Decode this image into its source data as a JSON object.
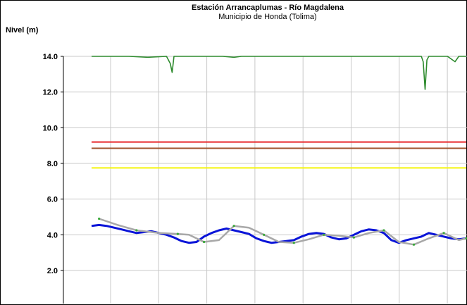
{
  "chart_data": {
    "type": "line",
    "title": "Estación Arrancaplumas - Río Magdalena",
    "subtitle": "Municipio de Honda (Tolima)",
    "ylabel": "Nivel (m)",
    "xlabel": "",
    "ylim": [
      0,
      14.0
    ],
    "yticks": [
      "14.0",
      "12.0",
      "10.0",
      "8.0",
      "6.0",
      "4.0",
      "2.0"
    ],
    "yticks_values": [
      14,
      12,
      10,
      8,
      6,
      4,
      2
    ],
    "grid": true,
    "x_gridlines": 8,
    "x_range": [
      0,
      100
    ],
    "thresholds": [
      {
        "value": 9.2,
        "color": "#e8272a"
      },
      {
        "value": 8.85,
        "color": "#a0522d"
      },
      {
        "value": 7.75,
        "color": "#f5f50a"
      }
    ],
    "series": [
      {
        "color": "#0a14d8",
        "x": [
          0,
          2,
          4,
          6,
          8,
          10,
          12,
          14,
          16,
          18,
          20,
          22,
          24,
          26,
          28,
          30,
          32,
          34,
          36,
          38,
          40,
          42,
          44,
          46,
          48,
          50,
          52,
          54,
          56,
          58,
          60,
          62,
          64,
          66,
          68,
          70,
          72,
          74,
          76,
          78,
          80,
          82,
          84,
          86,
          88,
          90,
          92,
          94,
          96,
          98,
          100
        ],
        "values": [
          4.5,
          4.55,
          4.5,
          4.4,
          4.3,
          4.2,
          4.1,
          4.15,
          4.2,
          4.1,
          4.0,
          3.85,
          3.65,
          3.55,
          3.6,
          3.9,
          4.1,
          4.25,
          4.35,
          4.25,
          4.15,
          4.05,
          3.8,
          3.65,
          3.55,
          3.6,
          3.65,
          3.7,
          3.9,
          4.05,
          4.1,
          4.05,
          3.85,
          3.75,
          3.8,
          4.0,
          4.2,
          4.3,
          4.25,
          4.1,
          3.7,
          3.55,
          3.7,
          3.8,
          3.9,
          4.1,
          4.0,
          3.9,
          3.8,
          3.75,
          3.8
        ]
      },
      {
        "color": "#a8a8a8",
        "x": [
          2,
          7,
          12,
          18,
          23,
          26,
          30,
          34,
          38,
          42,
          46,
          50,
          54,
          58,
          62,
          66,
          70,
          74,
          78,
          82,
          86,
          90,
          94,
          98,
          100
        ],
        "values": [
          4.9,
          4.55,
          4.25,
          4.1,
          4.05,
          4.0,
          3.6,
          3.7,
          4.5,
          4.4,
          4.0,
          3.6,
          3.55,
          3.75,
          4.0,
          3.95,
          3.85,
          4.1,
          4.25,
          3.6,
          3.45,
          3.8,
          4.1,
          3.7,
          3.8
        ]
      },
      {
        "color": "#2e8b2e",
        "x": [
          0,
          5,
          10,
          15,
          20,
          21,
          21.5,
          22,
          25,
          30,
          35,
          38,
          40,
          45,
          50,
          55,
          60,
          65,
          70,
          75,
          80,
          85,
          88,
          88.5,
          89,
          89.5,
          90,
          95,
          97,
          98,
          100
        ],
        "values": [
          14.0,
          14.0,
          14.0,
          13.95,
          14.0,
          13.6,
          13.1,
          14.0,
          14.0,
          14.0,
          14.0,
          13.95,
          14.0,
          14.0,
          14.0,
          14.0,
          14.0,
          14.0,
          14.0,
          14.0,
          14.0,
          14.0,
          14.0,
          13.7,
          12.15,
          13.8,
          14.0,
          14.0,
          13.7,
          14.0,
          14.0
        ]
      }
    ]
  }
}
